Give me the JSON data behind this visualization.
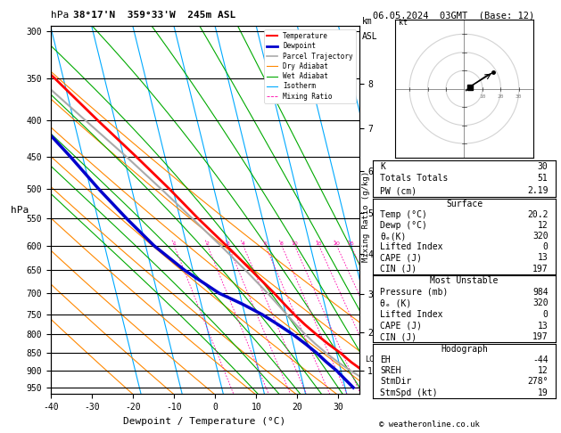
{
  "title_left": "38°17'N  359°33'W  245m ASL",
  "title_right": "06.05.2024  03GMT  (Base: 12)",
  "xlabel": "Dewpoint / Temperature (°C)",
  "ylabel_left": "hPa",
  "ylabel_right_km": "km\nASL",
  "ylabel_right_mr": "Mixing Ratio (g/kg)",
  "pressure_levels": [
    300,
    350,
    400,
    450,
    500,
    550,
    600,
    650,
    700,
    750,
    800,
    850,
    900,
    950
  ],
  "xlim": [
    -40,
    35
  ],
  "pmin": 295,
  "pmax": 970,
  "temp_color": "#ff0000",
  "dewp_color": "#0000cc",
  "parcel_color": "#aaaaaa",
  "dry_adiabat_color": "#ff8800",
  "wet_adiabat_color": "#00aa00",
  "isotherm_color": "#00aaff",
  "mixing_ratio_color": "#ff00aa",
  "background_color": "#ffffff",
  "copyright": "© weatheronline.co.uk",
  "skew_factor": 22,
  "stats": {
    "K": 30,
    "Totals_Totals": 51,
    "PW_cm": 2.19,
    "Surface_Temp": 20.2,
    "Surface_Dewp": 12,
    "Surface_thetae": 320,
    "Surface_LI": 0,
    "Surface_CAPE": 13,
    "Surface_CIN": 197,
    "MU_Pressure": 984,
    "MU_thetae": 320,
    "MU_LI": 0,
    "MU_CAPE": 13,
    "MU_CIN": 197,
    "Hodo_EH": -44,
    "Hodo_SREH": 12,
    "Hodo_StmDir": 278,
    "Hodo_StmSpd": 19
  },
  "temperature_profile": {
    "pressure": [
      950,
      925,
      900,
      875,
      850,
      825,
      800,
      775,
      750,
      725,
      700,
      650,
      600,
      550,
      500,
      450,
      400,
      350,
      300
    ],
    "temp": [
      20.2,
      17.6,
      15.4,
      13.0,
      11.0,
      8.5,
      6.2,
      4.0,
      2.0,
      0.2,
      -1.6,
      -5.8,
      -10.4,
      -15.6,
      -20.8,
      -27.0,
      -34.2,
      -42.0,
      -52.0
    ]
  },
  "dewpoint_profile": {
    "pressure": [
      950,
      925,
      900,
      875,
      850,
      825,
      800,
      775,
      750,
      725,
      700,
      650,
      600,
      550,
      500,
      450,
      400,
      350,
      300
    ],
    "dewp": [
      12.0,
      10.5,
      9.0,
      7.0,
      5.2,
      3.0,
      0.5,
      -2.5,
      -5.8,
      -10.0,
      -15.0,
      -22.0,
      -28.0,
      -33.0,
      -38.0,
      -43.0,
      -49.0,
      -55.0,
      -62.0
    ]
  },
  "parcel_profile": {
    "pressure": [
      984,
      950,
      925,
      900,
      875,
      850,
      825,
      800,
      775,
      750,
      700,
      650,
      600,
      550,
      500,
      450,
      400,
      350,
      300
    ],
    "temp": [
      20.2,
      18.0,
      15.2,
      12.4,
      9.8,
      7.5,
      5.4,
      3.5,
      1.8,
      0.2,
      -3.2,
      -7.2,
      -11.8,
      -17.0,
      -22.8,
      -29.4,
      -37.2,
      -46.0,
      -56.5
    ]
  },
  "lcl_pressure": 868,
  "mixing_ratios": [
    1,
    2,
    3,
    4,
    6,
    8,
    10,
    15,
    20,
    25
  ],
  "isotherms_C": [
    -40,
    -30,
    -20,
    -10,
    0,
    10,
    20,
    30,
    40
  ],
  "dry_adiabats_C": [
    -40,
    -30,
    -20,
    -10,
    0,
    10,
    20,
    30,
    40
  ],
  "wet_adiabats_C": [
    -10,
    -5,
    0,
    5,
    10,
    15,
    20,
    25,
    30
  ],
  "hodo_u": [
    1,
    3,
    6,
    9,
    12,
    14,
    16
  ],
  "hodo_v": [
    -1,
    1,
    3,
    5,
    7,
    8,
    9
  ],
  "storm_u": 3,
  "storm_v": 1
}
